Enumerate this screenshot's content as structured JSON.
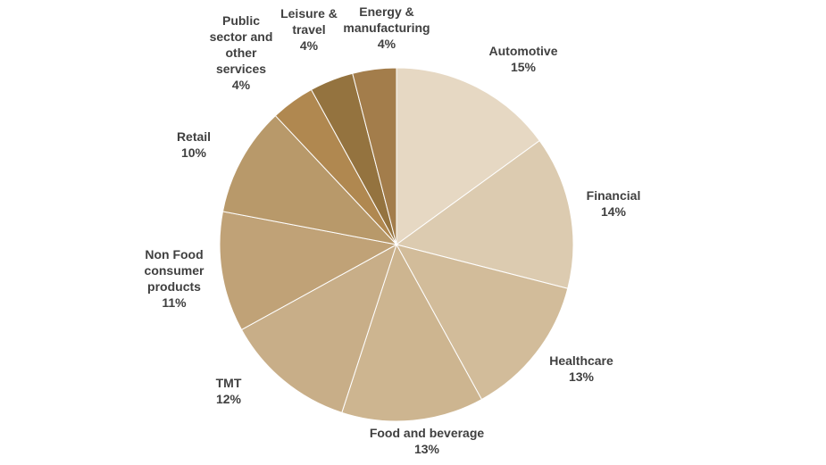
{
  "chart_data": {
    "type": "pie",
    "title": "",
    "start_angle_deg": 0,
    "direction": "clockwise",
    "legend": "none",
    "slices": [
      {
        "label": [
          "Automotive"
        ],
        "value": 15,
        "value_label": "15%",
        "color": "#e6d8c3"
      },
      {
        "label": [
          "Financial"
        ],
        "value": 14,
        "value_label": "14%",
        "color": "#dccbb0"
      },
      {
        "label": [
          "Healthcare"
        ],
        "value": 13,
        "value_label": "13%",
        "color": "#d2bc9a"
      },
      {
        "label": [
          "Food and beverage"
        ],
        "value": 13,
        "value_label": "13%",
        "color": "#cdb590"
      },
      {
        "label": [
          "TMT"
        ],
        "value": 12,
        "value_label": "12%",
        "color": "#c8ae88"
      },
      {
        "label": [
          "Non Food",
          "consumer",
          "products"
        ],
        "value": 11,
        "value_label": "11%",
        "color": "#c0a277"
      },
      {
        "label": [
          "Retail"
        ],
        "value": 10,
        "value_label": "10%",
        "color": "#b8996a"
      },
      {
        "label": [
          "Public",
          "sector and",
          "other",
          "services"
        ],
        "value": 4,
        "value_label": "4%",
        "color": "#b08850"
      },
      {
        "label": [
          "Leisure &",
          "travel"
        ],
        "value": 4,
        "value_label": "4%",
        "color": "#94733f"
      },
      {
        "label": [
          "Energy &",
          "manufacturing"
        ],
        "value": 4,
        "value_label": "4%",
        "color": "#a37d4b"
      }
    ]
  }
}
